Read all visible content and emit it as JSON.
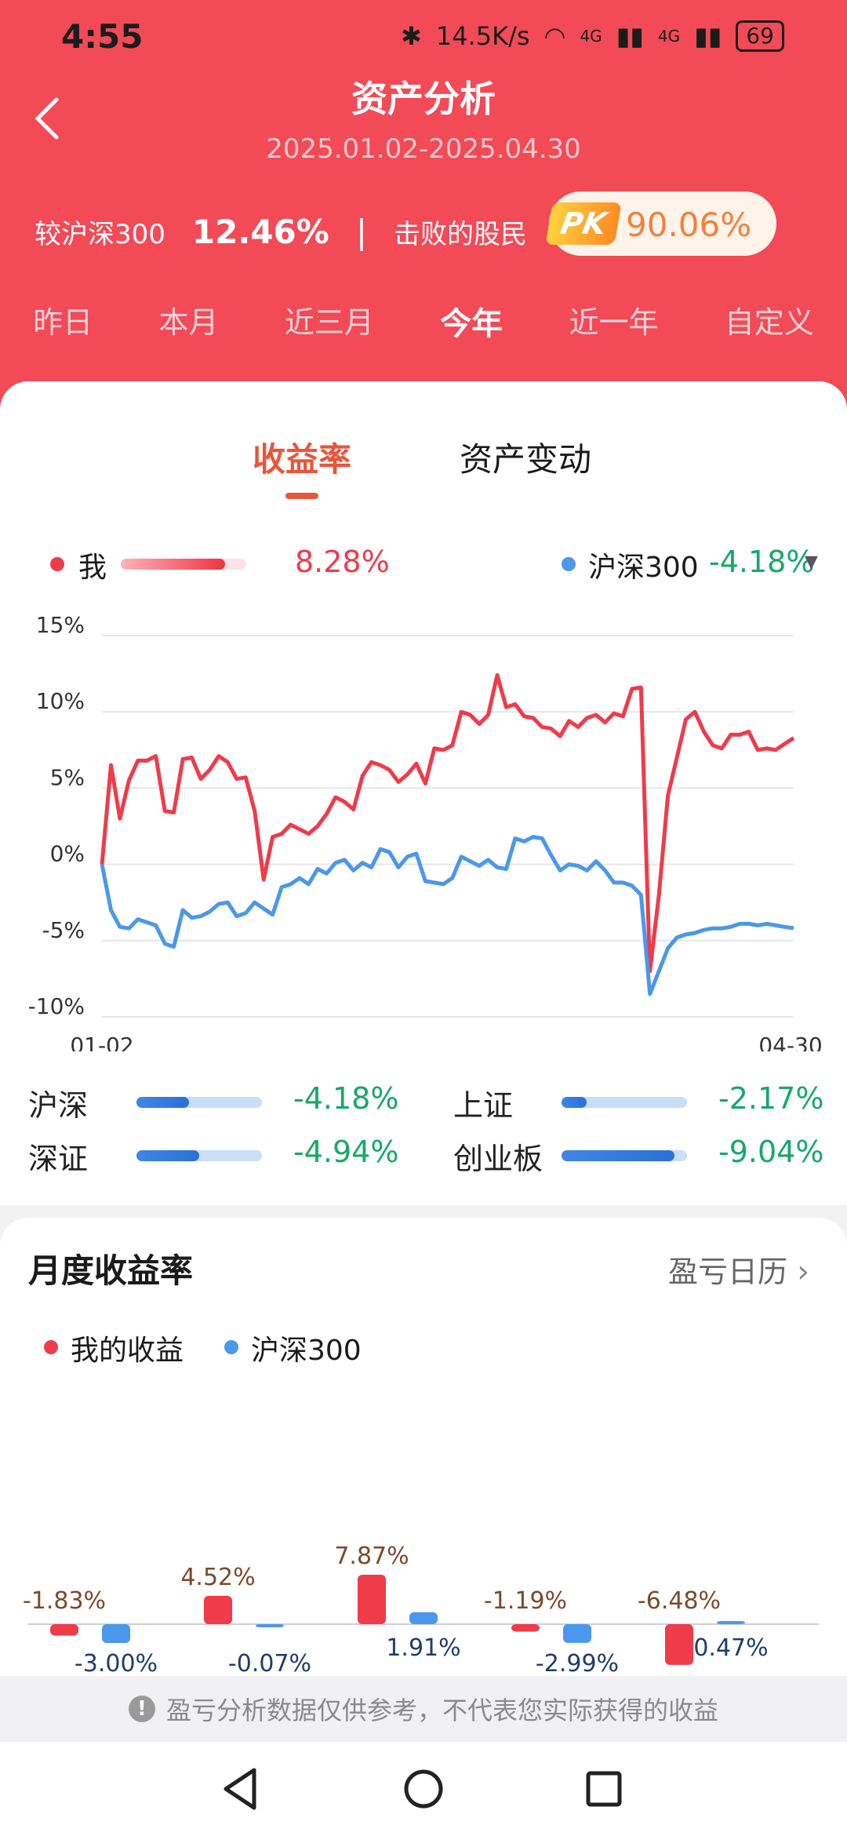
{
  "status_bar": {
    "time": "4:55",
    "bluetooth_icon": "bluetooth-icon",
    "speed": "14.5K/s",
    "wifi_icon": "wifi-icon",
    "sig1": "4G",
    "sig2": "4G",
    "battery": "69"
  },
  "header": {
    "title": "资产分析",
    "date_range": "2025.01.02-2025.04.30"
  },
  "compare": {
    "label": "较沪深300",
    "value": "12.46%",
    "separator": "|",
    "beat_label": "击败的股民",
    "pk": "PK",
    "beat_value": "90.06%"
  },
  "periods": [
    "昨日",
    "本月",
    "近三月",
    "今年",
    "近一年",
    "自定义"
  ],
  "active_period_index": 3,
  "tabs": {
    "yield": "收益率",
    "asset_change": "资产变动"
  },
  "legend": {
    "me_label": "我",
    "me_value": "8.28%",
    "me_bar_fraction": 0.83,
    "hs_label": "沪深300",
    "hs_value": "-4.18%"
  },
  "chart_data": {
    "type": "line",
    "x_start": "01-02",
    "x_end": "04-30",
    "y_ticks": [
      "15%",
      "10%",
      "5%",
      "0%",
      "-5%",
      "-10%"
    ],
    "ylim": [
      -10,
      15
    ],
    "series": [
      {
        "name": "我",
        "color": "#ef3b4a",
        "values": [
          0.0,
          6.5,
          3.0,
          5.5,
          6.8,
          6.8,
          7.1,
          3.5,
          3.4,
          6.9,
          7.0,
          5.6,
          6.2,
          7.1,
          6.7,
          5.6,
          5.7,
          3.5,
          -1.0,
          1.8,
          2.0,
          2.6,
          2.3,
          2.0,
          2.5,
          3.3,
          4.4,
          4.1,
          3.6,
          5.8,
          6.7,
          6.5,
          6.2,
          5.4,
          5.9,
          6.6,
          5.3,
          7.6,
          7.5,
          7.8,
          10.0,
          9.8,
          9.2,
          9.8,
          12.4,
          10.3,
          10.5,
          9.7,
          9.6,
          9.0,
          8.9,
          8.4,
          9.4,
          9.0,
          9.6,
          9.8,
          9.3,
          9.9,
          9.7,
          11.5,
          11.6,
          -7.0,
          -2.0,
          4.5,
          7.0,
          9.5,
          10.0,
          8.7,
          7.8,
          7.6,
          8.5,
          8.5,
          8.7,
          7.5,
          7.6,
          7.5,
          7.9,
          8.28
        ]
      },
      {
        "name": "沪深300",
        "color": "#4b97ec",
        "values": [
          0.0,
          -3.0,
          -4.1,
          -4.2,
          -3.6,
          -3.8,
          -4.0,
          -5.2,
          -5.4,
          -3.0,
          -3.5,
          -3.4,
          -3.1,
          -2.6,
          -2.5,
          -3.4,
          -3.2,
          -2.5,
          -2.9,
          -3.3,
          -1.5,
          -1.3,
          -0.9,
          -1.3,
          -0.3,
          -0.6,
          0.1,
          0.3,
          -0.4,
          0.1,
          -0.2,
          1.0,
          0.8,
          -0.2,
          0.5,
          0.7,
          -1.1,
          -1.2,
          -1.3,
          -0.9,
          0.5,
          0.2,
          -0.1,
          0.3,
          -0.2,
          -0.3,
          1.7,
          1.5,
          1.8,
          1.7,
          0.6,
          -0.4,
          0.0,
          -0.1,
          -0.4,
          0.2,
          -0.4,
          -1.2,
          -1.2,
          -1.4,
          -2.0,
          -8.5,
          -7.0,
          -5.5,
          -4.8,
          -4.6,
          -4.5,
          -4.3,
          -4.2,
          -4.2,
          -4.1,
          -3.9,
          -3.9,
          -4.0,
          -3.9,
          -4.0,
          -4.1,
          -4.18
        ]
      }
    ]
  },
  "indices": [
    {
      "name": "沪深",
      "value": "-4.18%",
      "fraction": 0.42
    },
    {
      "name": "上证",
      "value": "-2.17%",
      "fraction": 0.2
    },
    {
      "name": "深证",
      "value": "-4.94%",
      "fraction": 0.5
    },
    {
      "name": "创业板",
      "value": "-9.04%",
      "fraction": 0.9
    }
  ],
  "monthly": {
    "title": "月度收益率",
    "calendar_link": "盈亏日历",
    "legend_me": "我的收益",
    "legend_hs": "沪深300",
    "chart_data": {
      "type": "bar",
      "series": [
        {
          "name": "我的收益",
          "color": "#ef3b4a",
          "values": [
            -1.83,
            4.52,
            7.87,
            -1.19,
            -6.48
          ],
          "labels": [
            "-1.83%",
            "4.52%",
            "7.87%",
            "-1.19%",
            "-6.48%"
          ]
        },
        {
          "name": "沪深300",
          "color": "#4b97ec",
          "values": [
            -3.0,
            -0.07,
            1.91,
            -2.99,
            0.47
          ],
          "labels": [
            "-3.00%",
            "-0.07%",
            "1.91%",
            "-2.99%",
            "0.47%"
          ]
        }
      ]
    }
  },
  "disclaimer": "盈亏分析数据仅供参考，不代表您实际获得的收益",
  "navbar": {
    "back": "back-triangle-icon",
    "home": "home-circle-icon",
    "recents": "recents-square-icon"
  }
}
